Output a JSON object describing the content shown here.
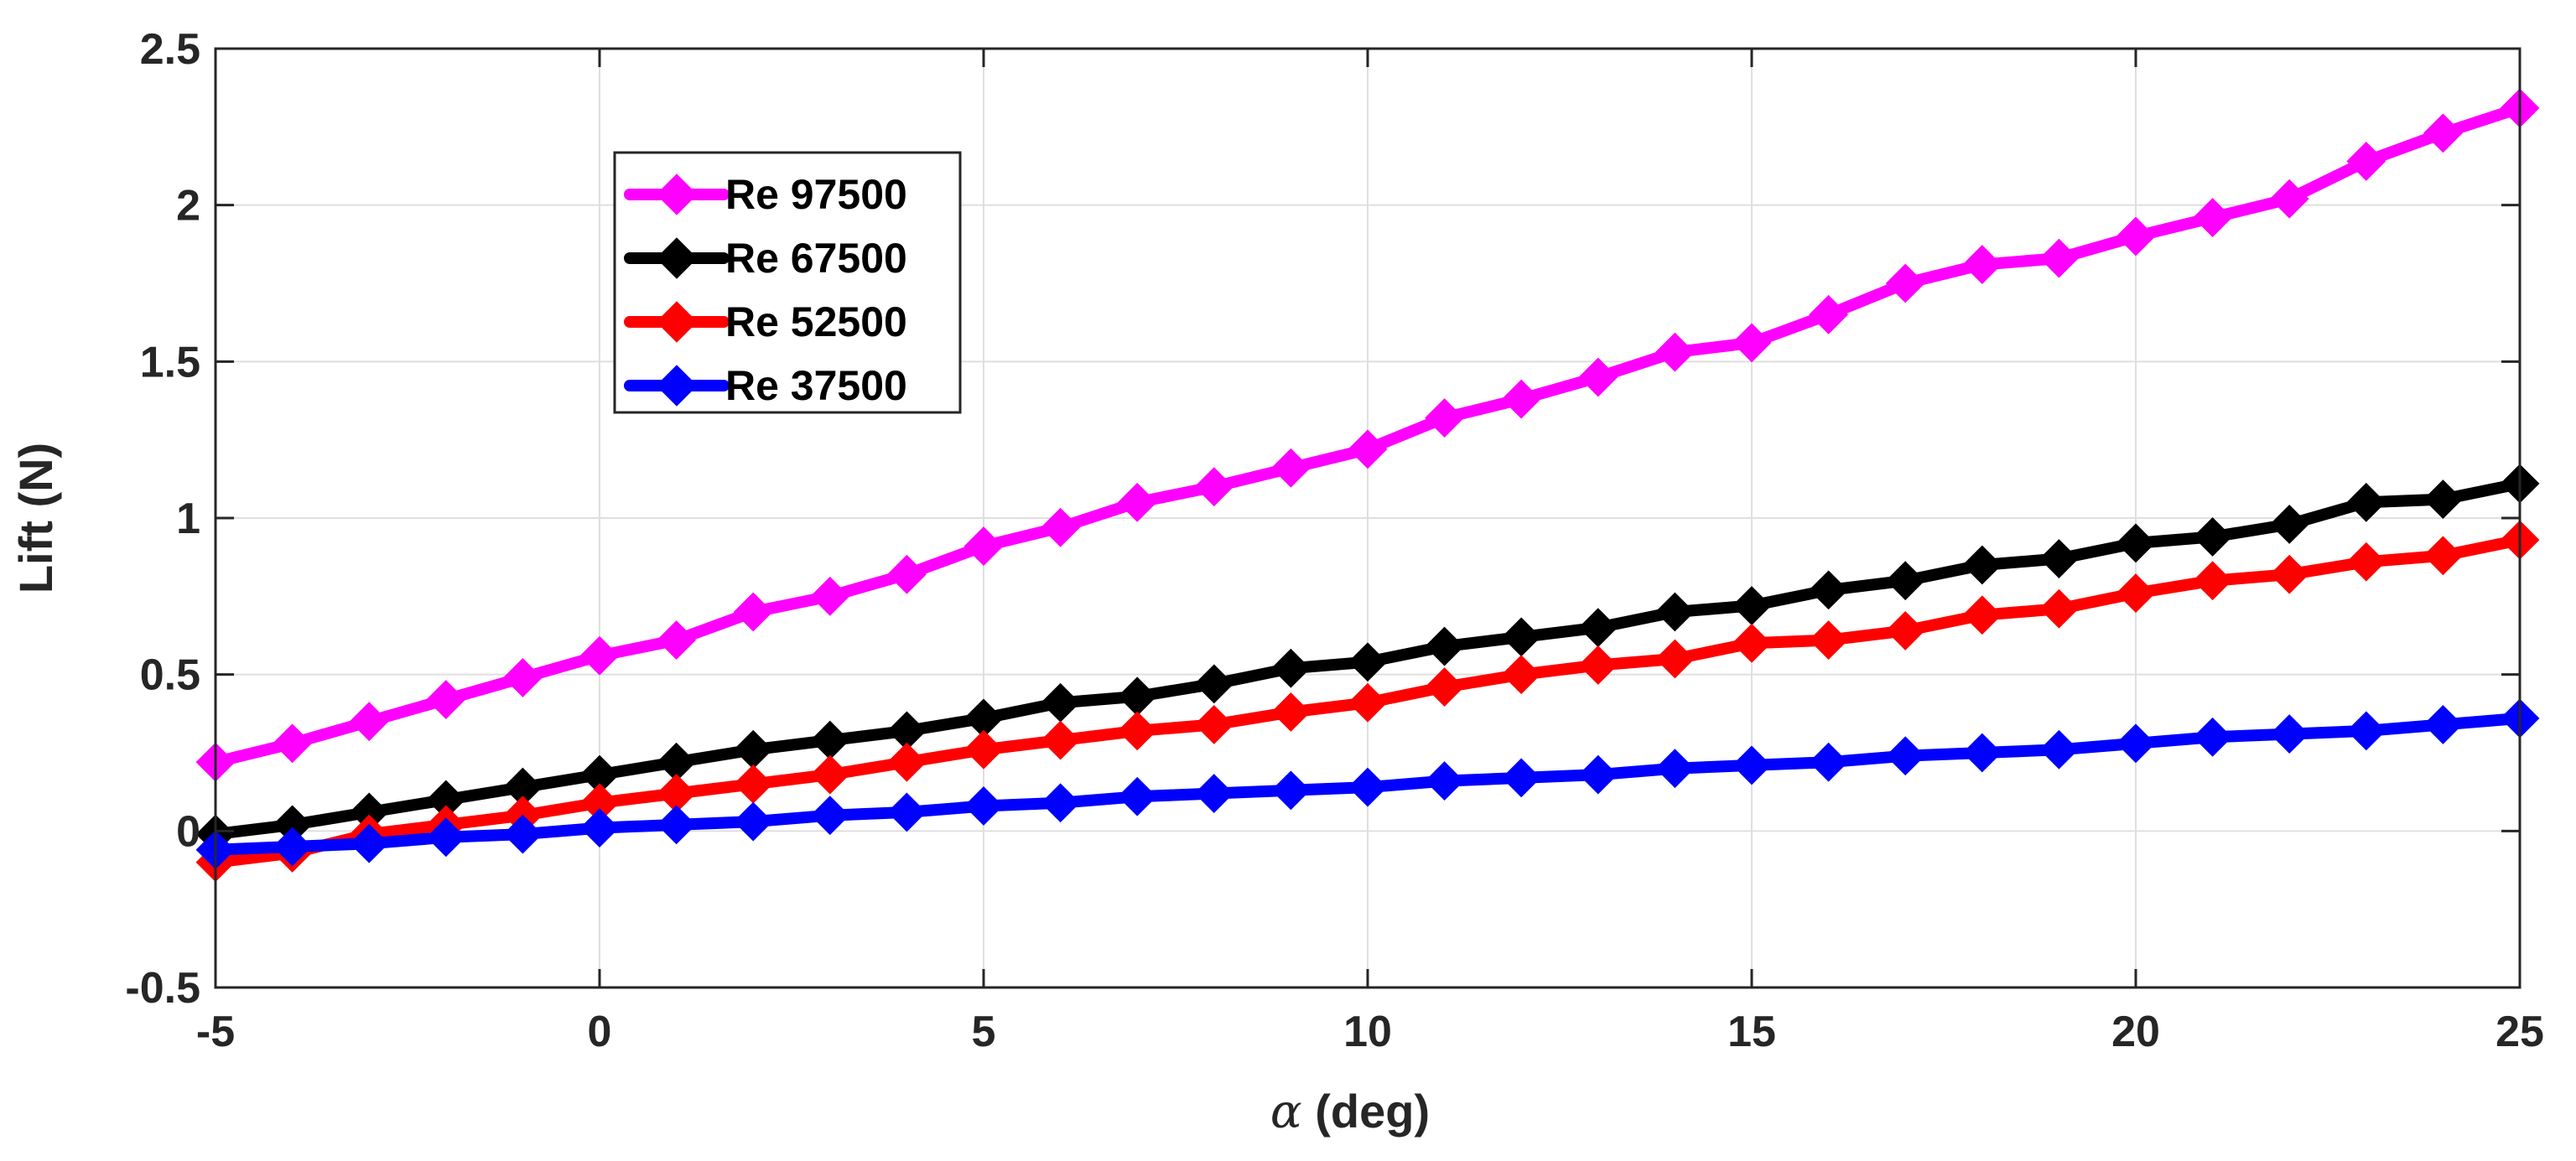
{
  "chart_data": {
    "type": "line",
    "title": "",
    "xlabel": "α (deg)",
    "xlabel_symbol": "α",
    "xlabel_rest": " (deg)",
    "ylabel": "Lift (N)",
    "xlim": [
      -5,
      25
    ],
    "ylim": [
      -0.5,
      2.5
    ],
    "xticks": [
      -5,
      0,
      5,
      10,
      15,
      20,
      25
    ],
    "yticks": [
      -0.5,
      0,
      0.5,
      1,
      1.5,
      2,
      2.5
    ],
    "xtick_labels": [
      "-5",
      "0",
      "5",
      "10",
      "15",
      "20",
      "25"
    ],
    "ytick_labels": [
      "-0.5",
      "0",
      "0.5",
      "1",
      "1.5",
      "2",
      "2.5"
    ],
    "grid": true,
    "legend_position": "upper-left",
    "marker": "diamond",
    "x": [
      -5,
      -4,
      -3,
      -2,
      -1,
      0,
      1,
      2,
      3,
      4,
      5,
      6,
      7,
      8,
      9,
      10,
      11,
      12,
      13,
      14,
      15,
      16,
      17,
      18,
      19,
      20,
      21,
      22,
      23,
      24,
      25
    ],
    "series": [
      {
        "name": "Re 97500",
        "color": "#ff00ff",
        "values": [
          0.22,
          0.28,
          0.35,
          0.42,
          0.49,
          0.56,
          0.61,
          0.7,
          0.75,
          0.82,
          0.91,
          0.97,
          1.05,
          1.1,
          1.16,
          1.22,
          1.32,
          1.38,
          1.45,
          1.53,
          1.56,
          1.65,
          1.75,
          1.81,
          1.83,
          1.9,
          1.96,
          2.02,
          2.14,
          2.23,
          2.31
        ]
      },
      {
        "name": "Re 67500",
        "color": "#000000",
        "values": [
          -0.01,
          0.02,
          0.06,
          0.1,
          0.14,
          0.18,
          0.22,
          0.26,
          0.29,
          0.32,
          0.36,
          0.41,
          0.43,
          0.47,
          0.52,
          0.54,
          0.59,
          0.62,
          0.65,
          0.7,
          0.72,
          0.77,
          0.8,
          0.85,
          0.87,
          0.92,
          0.94,
          0.98,
          1.05,
          1.06,
          1.11
        ]
      },
      {
        "name": "Re 52500",
        "color": "#ff0000",
        "values": [
          -0.1,
          -0.07,
          -0.01,
          0.02,
          0.05,
          0.09,
          0.12,
          0.15,
          0.18,
          0.22,
          0.26,
          0.29,
          0.32,
          0.34,
          0.38,
          0.41,
          0.46,
          0.5,
          0.53,
          0.55,
          0.6,
          0.61,
          0.64,
          0.69,
          0.71,
          0.76,
          0.8,
          0.82,
          0.86,
          0.88,
          0.93
        ]
      },
      {
        "name": "Re 37500",
        "color": "#0000ff",
        "values": [
          -0.06,
          -0.05,
          -0.04,
          -0.02,
          -0.01,
          0.01,
          0.02,
          0.03,
          0.05,
          0.06,
          0.08,
          0.09,
          0.11,
          0.12,
          0.13,
          0.14,
          0.16,
          0.17,
          0.18,
          0.2,
          0.21,
          0.22,
          0.24,
          0.25,
          0.26,
          0.28,
          0.3,
          0.31,
          0.32,
          0.34,
          0.36
        ]
      }
    ]
  }
}
